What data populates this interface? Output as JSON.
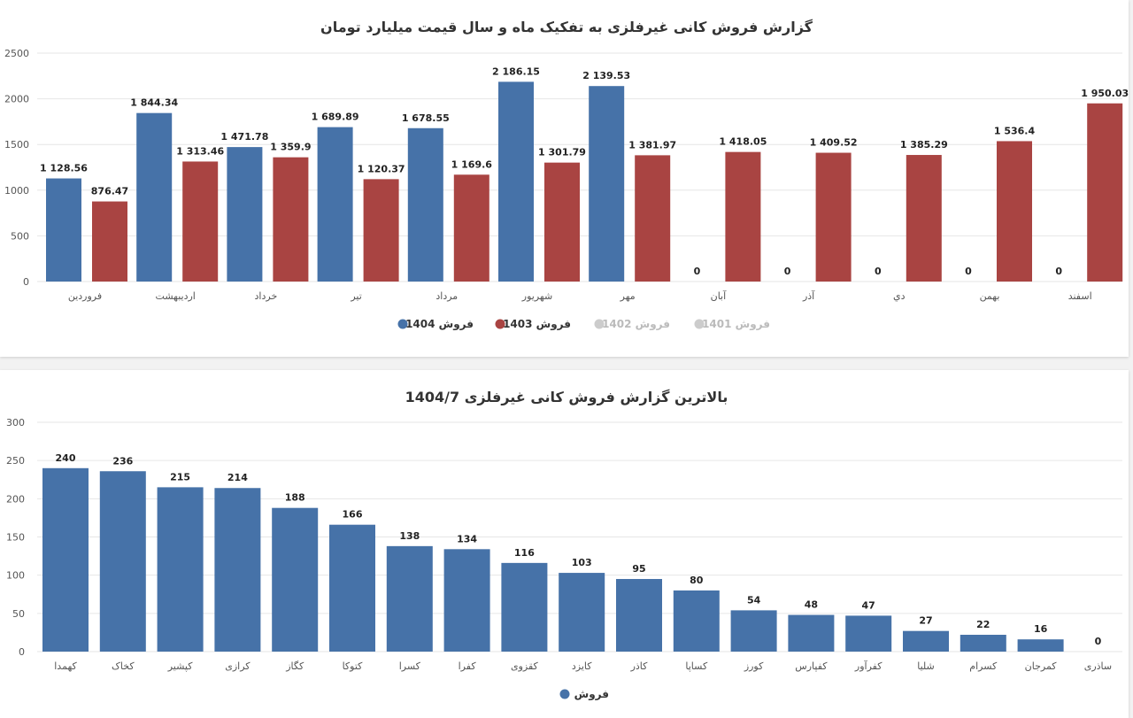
{
  "colors": {
    "s1404": "#4672a8",
    "s1403": "#a94442",
    "hidden": "#cccccc",
    "grid": "#e6e6e6"
  },
  "chart_data": [
    {
      "type": "bar",
      "title": "گزارش فروش کانی غیرفلزی به تفکیک ماه و سال قیمت میلیارد تومان",
      "categories": [
        "فروردین",
        "اردیبهشت",
        "خرداد",
        "تیر",
        "مرداد",
        "شهریور",
        "مهر",
        "آبان",
        "آذر",
        "دي",
        "بهمن",
        "اسفند"
      ],
      "series": [
        {
          "name": "فروش 1404",
          "values": [
            1128.56,
            1844.34,
            1471.78,
            1689.89,
            1678.55,
            2186.15,
            2139.53,
            0,
            0,
            0,
            0,
            0
          ],
          "visible": true
        },
        {
          "name": "فروش 1403",
          "values": [
            876.47,
            1313.46,
            1359.9,
            1120.37,
            1169.6,
            1301.79,
            1381.97,
            1418.05,
            1409.52,
            1385.29,
            1536.4,
            1950.03
          ],
          "visible": true
        },
        {
          "name": "فروش 1402",
          "visible": false
        },
        {
          "name": "فروش 1401",
          "visible": false
        }
      ],
      "ylim": [
        0,
        2500
      ],
      "yticks": [
        0,
        500,
        1000,
        1500,
        2000,
        2500
      ],
      "grid": true,
      "legend": "bottom-center"
    },
    {
      "type": "bar",
      "title": "بالاترین گزارش فروش کانی غیرفلزی 1404/7",
      "categories": [
        "کهمدا",
        "کخاک",
        "کپشیر",
        "کرازی",
        "کگاز",
        "کتوکا",
        "کسرا",
        "کفرا",
        "کقزوی",
        "کایزد",
        "کاذر",
        "کساپا",
        "کورز",
        "کفپارس",
        "کفرآور",
        "شلیا",
        "کسرام",
        "کمرجان",
        "ساذری"
      ],
      "series": [
        {
          "name": "فروش",
          "values": [
            240,
            236,
            215,
            214,
            188,
            166,
            138,
            134,
            116,
            103,
            95,
            80,
            54,
            48,
            47,
            27,
            22,
            16,
            0
          ]
        }
      ],
      "ylim": [
        0,
        300
      ],
      "yticks": [
        0,
        50,
        100,
        150,
        200,
        250,
        300
      ],
      "grid": true,
      "legend": "bottom-center"
    }
  ]
}
